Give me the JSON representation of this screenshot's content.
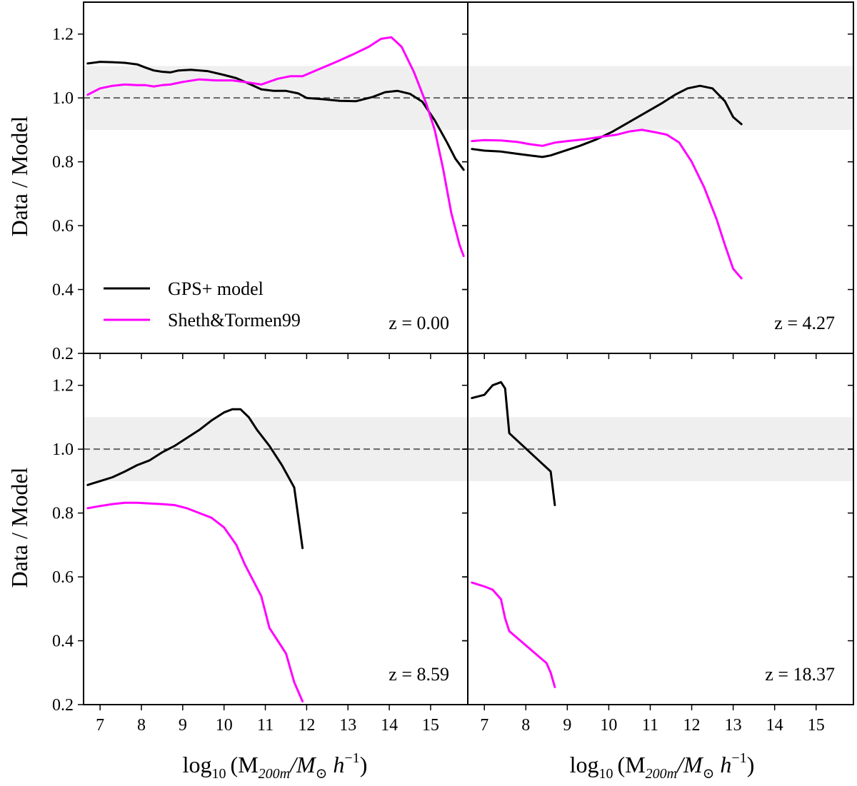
{
  "figure": {
    "ylabel": "Data / Model",
    "xlabel_prefix": "log",
    "xlabel_sub": "10",
    "xlabel_body": "(M",
    "xlabel_body_sub1": "200m",
    "xlabel_body_mid": "/M",
    "xlabel_body_sub2": "⊙",
    "xlabel_body_h": " h",
    "xlabel_body_sup": "−1",
    "xlabel_close": ")"
  },
  "legend": [
    {
      "label": "GPS+ model",
      "color": "#000000"
    },
    {
      "label": "Sheth&Tormen99",
      "color": "#ff00ff"
    }
  ],
  "chart_data": [
    {
      "type": "line",
      "panel": "top-left",
      "annotation": "z = 0.00",
      "xlim": [
        6.6,
        15.9
      ],
      "ylim": [
        0.2,
        1.3
      ],
      "xticks": [
        "7",
        "8",
        "9",
        "10",
        "11",
        "12",
        "13",
        "14",
        "15"
      ],
      "yticks": [
        "0.2",
        "0.4",
        "0.6",
        "0.8",
        "1.0",
        "1.2"
      ],
      "reference_line": 1.0,
      "band": [
        0.9,
        1.1
      ],
      "series": [
        {
          "name": "GPS+ model",
          "color": "#000000",
          "x": [
            6.7,
            7.0,
            7.3,
            7.6,
            7.9,
            8.1,
            8.3,
            8.5,
            8.7,
            8.9,
            9.2,
            9.6,
            10.0,
            10.3,
            10.6,
            10.9,
            11.2,
            11.5,
            11.8,
            12.0,
            12.4,
            12.8,
            13.2,
            13.6,
            13.9,
            14.2,
            14.5,
            14.8,
            15.1,
            15.4,
            15.6,
            15.8
          ],
          "y": [
            1.108,
            1.113,
            1.112,
            1.11,
            1.105,
            1.095,
            1.086,
            1.082,
            1.08,
            1.086,
            1.088,
            1.084,
            1.072,
            1.062,
            1.045,
            1.027,
            1.022,
            1.022,
            1.014,
            1.0,
            0.996,
            0.991,
            0.99,
            1.003,
            1.018,
            1.022,
            1.013,
            0.988,
            0.93,
            0.86,
            0.81,
            0.775
          ]
        },
        {
          "name": "Sheth&Tormen99",
          "color": "#ff00ff",
          "x": [
            6.7,
            7.0,
            7.3,
            7.6,
            7.9,
            8.1,
            8.3,
            8.5,
            8.7,
            9.0,
            9.4,
            9.8,
            10.2,
            10.6,
            10.9,
            11.3,
            11.6,
            11.9,
            12.3,
            12.7,
            13.1,
            13.5,
            13.8,
            14.05,
            14.3,
            14.6,
            14.9,
            15.1,
            15.3,
            15.5,
            15.7,
            15.8
          ],
          "y": [
            1.01,
            1.03,
            1.038,
            1.042,
            1.04,
            1.04,
            1.036,
            1.04,
            1.042,
            1.05,
            1.058,
            1.055,
            1.055,
            1.048,
            1.042,
            1.06,
            1.068,
            1.068,
            1.09,
            1.112,
            1.135,
            1.16,
            1.185,
            1.19,
            1.16,
            1.08,
            0.98,
            0.9,
            0.78,
            0.64,
            0.54,
            0.505
          ]
        }
      ]
    },
    {
      "type": "line",
      "panel": "top-right",
      "annotation": "z = 4.27",
      "xlim": [
        6.6,
        15.9
      ],
      "ylim": [
        0.2,
        1.3
      ],
      "xticks": [
        "7",
        "8",
        "9",
        "10",
        "11",
        "12",
        "13",
        "14",
        "15"
      ],
      "yticks": [
        "0.2",
        "0.4",
        "0.6",
        "0.8",
        "1.0",
        "1.2"
      ],
      "reference_line": 1.0,
      "band": [
        0.9,
        1.1
      ],
      "series": [
        {
          "name": "GPS+ model",
          "color": "#000000",
          "x": [
            6.7,
            7.0,
            7.4,
            7.8,
            8.1,
            8.4,
            8.6,
            8.9,
            9.3,
            9.7,
            10.1,
            10.5,
            10.9,
            11.3,
            11.6,
            11.9,
            12.2,
            12.5,
            12.8,
            13.0,
            13.2
          ],
          "y": [
            0.84,
            0.835,
            0.832,
            0.825,
            0.82,
            0.815,
            0.82,
            0.833,
            0.85,
            0.87,
            0.895,
            0.925,
            0.955,
            0.985,
            1.01,
            1.03,
            1.038,
            1.03,
            0.99,
            0.94,
            0.918
          ]
        },
        {
          "name": "Sheth&Tormen99",
          "color": "#ff00ff",
          "x": [
            6.7,
            7.0,
            7.4,
            7.8,
            8.1,
            8.4,
            8.7,
            9.0,
            9.4,
            9.8,
            10.2,
            10.5,
            10.8,
            11.1,
            11.4,
            11.7,
            12.0,
            12.3,
            12.6,
            12.8,
            13.0,
            13.2
          ],
          "y": [
            0.865,
            0.868,
            0.867,
            0.862,
            0.855,
            0.85,
            0.86,
            0.865,
            0.87,
            0.878,
            0.885,
            0.895,
            0.9,
            0.893,
            0.885,
            0.86,
            0.8,
            0.72,
            0.62,
            0.54,
            0.465,
            0.435
          ]
        }
      ]
    },
    {
      "type": "line",
      "panel": "bottom-left",
      "annotation": "z = 8.59",
      "xlim": [
        6.6,
        15.9
      ],
      "ylim": [
        0.2,
        1.3
      ],
      "xticks": [
        "7",
        "8",
        "9",
        "10",
        "11",
        "12",
        "13",
        "14",
        "15"
      ],
      "yticks": [
        "0.2",
        "0.4",
        "0.6",
        "0.8",
        "1.0",
        "1.2"
      ],
      "reference_line": 1.0,
      "band": [
        0.9,
        1.1
      ],
      "series": [
        {
          "name": "GPS+ model",
          "color": "#000000",
          "x": [
            6.7,
            7.0,
            7.3,
            7.6,
            7.9,
            8.2,
            8.5,
            8.8,
            9.1,
            9.4,
            9.7,
            10.0,
            10.2,
            10.4,
            10.6,
            10.8,
            11.1,
            11.4,
            11.7,
            11.9
          ],
          "y": [
            0.888,
            0.9,
            0.912,
            0.93,
            0.95,
            0.965,
            0.99,
            1.01,
            1.035,
            1.06,
            1.09,
            1.115,
            1.125,
            1.125,
            1.1,
            1.06,
            1.01,
            0.95,
            0.88,
            0.69
          ]
        },
        {
          "name": "Sheth&Tormen99",
          "color": "#ff00ff",
          "x": [
            6.7,
            7.0,
            7.3,
            7.6,
            7.9,
            8.2,
            8.5,
            8.8,
            9.1,
            9.4,
            9.7,
            10.0,
            10.3,
            10.5,
            10.7,
            10.9,
            11.1,
            11.3,
            11.5,
            11.7,
            11.9
          ],
          "y": [
            0.815,
            0.822,
            0.828,
            0.832,
            0.832,
            0.83,
            0.828,
            0.825,
            0.815,
            0.8,
            0.785,
            0.755,
            0.7,
            0.64,
            0.59,
            0.54,
            0.44,
            0.4,
            0.36,
            0.27,
            0.21
          ]
        }
      ]
    },
    {
      "type": "line",
      "panel": "bottom-right",
      "annotation": "z = 18.37",
      "xlim": [
        6.6,
        15.9
      ],
      "ylim": [
        0.2,
        1.3
      ],
      "xticks": [
        "7",
        "8",
        "9",
        "10",
        "11",
        "12",
        "13",
        "14",
        "15"
      ],
      "yticks": [
        "0.2",
        "0.4",
        "0.6",
        "0.8",
        "1.0",
        "1.2"
      ],
      "reference_line": 1.0,
      "band": [
        0.9,
        1.1
      ],
      "series": [
        {
          "name": "GPS+ model",
          "color": "#000000",
          "x": [
            6.7,
            7.0,
            7.2,
            7.4,
            7.5,
            7.6,
            8.6,
            8.7
          ],
          "y": [
            1.16,
            1.17,
            1.2,
            1.21,
            1.19,
            1.05,
            0.93,
            0.825
          ]
        },
        {
          "name": "Sheth&Tormen99",
          "color": "#ff00ff",
          "x": [
            6.7,
            7.0,
            7.2,
            7.4,
            7.5,
            7.6,
            8.5,
            8.6,
            8.7
          ],
          "y": [
            0.582,
            0.57,
            0.56,
            0.53,
            0.47,
            0.43,
            0.33,
            0.3,
            0.255
          ]
        }
      ]
    }
  ]
}
